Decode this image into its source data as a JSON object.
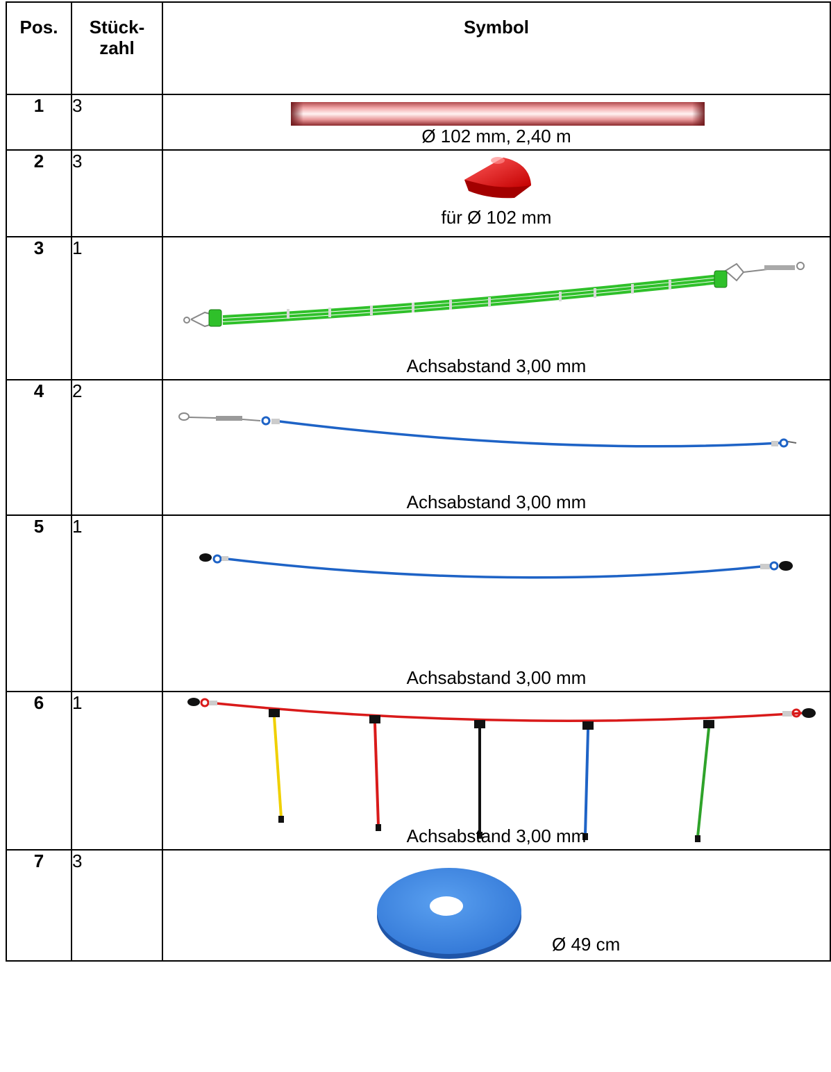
{
  "table": {
    "headers": {
      "pos": "Pos.",
      "qty": "Stück-\nzahl",
      "symbol": "Symbol"
    },
    "rows": [
      {
        "pos": "1",
        "qty": "3",
        "caption": "Ø 102 mm, 2,40 m",
        "icon": "red-tube-icon"
      },
      {
        "pos": "2",
        "qty": "3",
        "caption": "für Ø 102 mm",
        "icon": "red-cap-icon"
      },
      {
        "pos": "3",
        "qty": "1",
        "caption": "Achsabstand 3,00 mm",
        "icon": "green-triple-rope-icon"
      },
      {
        "pos": "4",
        "qty": "2",
        "caption": "Achsabstand 3,00 mm",
        "icon": "blue-rope-tensioner-icon"
      },
      {
        "pos": "5",
        "qty": "1",
        "caption": "Achsabstand 3,00 mm",
        "icon": "blue-rope-icon"
      },
      {
        "pos": "6",
        "qty": "1",
        "caption": "Achsabstand 3,00 mm",
        "icon": "red-rope-hanging-ropes-icon"
      },
      {
        "pos": "7",
        "qty": "3",
        "caption": "Ø 49 cm",
        "icon": "blue-disc-icon"
      }
    ]
  },
  "colors": {
    "tube_red": "#e98a8c",
    "cap_red": "#e01818",
    "rope_green": "#2fc02a",
    "rope_blue": "#1e63c6",
    "rope_red": "#d91a1a",
    "rope_yellow": "#f0d000",
    "rope_black": "#111111",
    "disc_blue": "#3a86e6"
  }
}
